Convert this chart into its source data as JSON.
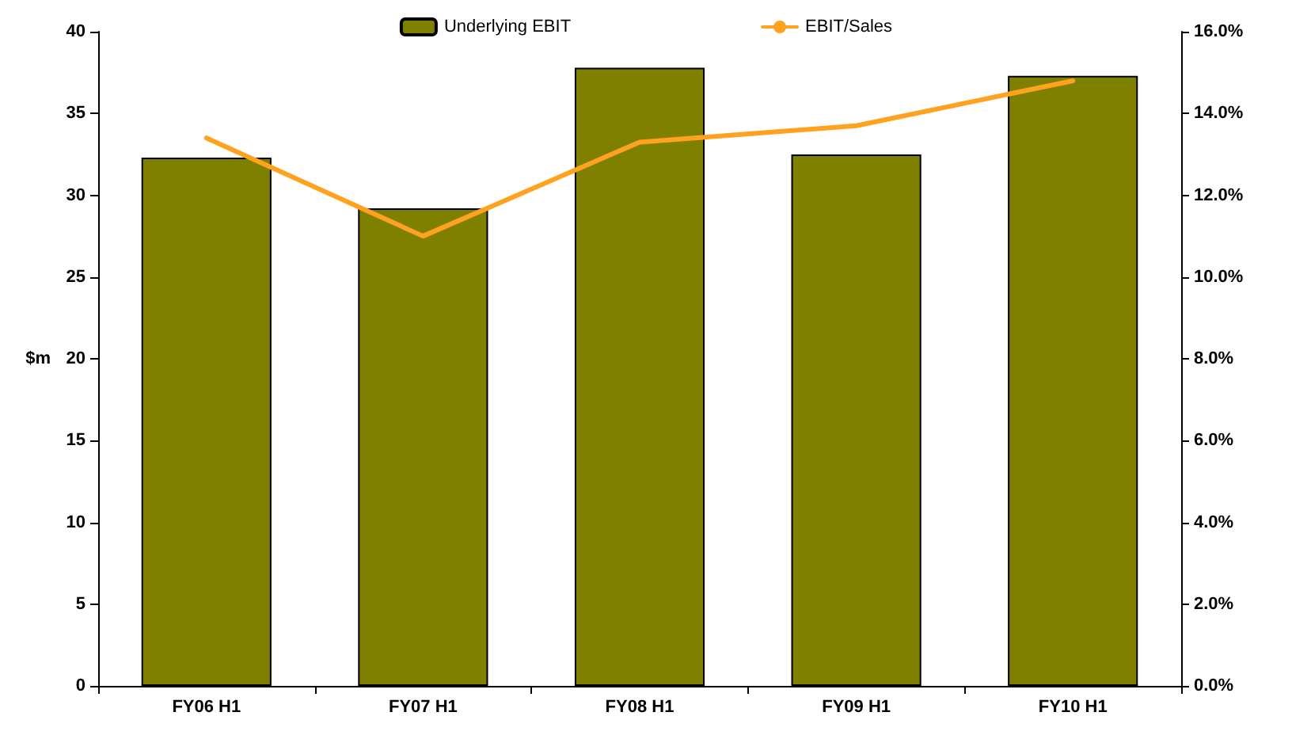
{
  "chart_data": {
    "type": "bar",
    "categories": [
      "FY06 H1",
      "FY07 H1",
      "FY08 H1",
      "FY09 H1",
      "FY10 H1"
    ],
    "ylabel": "$m",
    "series": [
      {
        "name": "Underlying EBIT",
        "color": "#808000",
        "values": [
          32.3,
          29.2,
          37.8,
          32.5,
          37.3
        ]
      },
      {
        "name": "EBIT/Sales",
        "type": "line",
        "axis": "y2",
        "color": "#ffa21f",
        "values": [
          13.4,
          11.0,
          13.3,
          13.7,
          14.8
        ]
      }
    ],
    "ylim": [
      0,
      40
    ],
    "yticks": [
      0,
      5,
      10,
      15,
      20,
      25,
      30,
      35,
      40
    ],
    "y2lim": [
      0,
      16
    ],
    "y2ticks": [
      {
        "value": 0,
        "label": "0.0%"
      },
      {
        "value": 2,
        "label": "2.0%"
      },
      {
        "value": 4,
        "label": "4.0%"
      },
      {
        "value": 6,
        "label": "6.0%"
      },
      {
        "value": 8,
        "label": "8.0%"
      },
      {
        "value": 10,
        "label": "10.0%"
      },
      {
        "value": 12,
        "label": "12.0%"
      },
      {
        "value": 14,
        "label": "14.0%"
      },
      {
        "value": 16,
        "label": "16.0%"
      }
    ],
    "grid": false,
    "legend": "top",
    "marker": "none",
    "line_style": "solid"
  }
}
